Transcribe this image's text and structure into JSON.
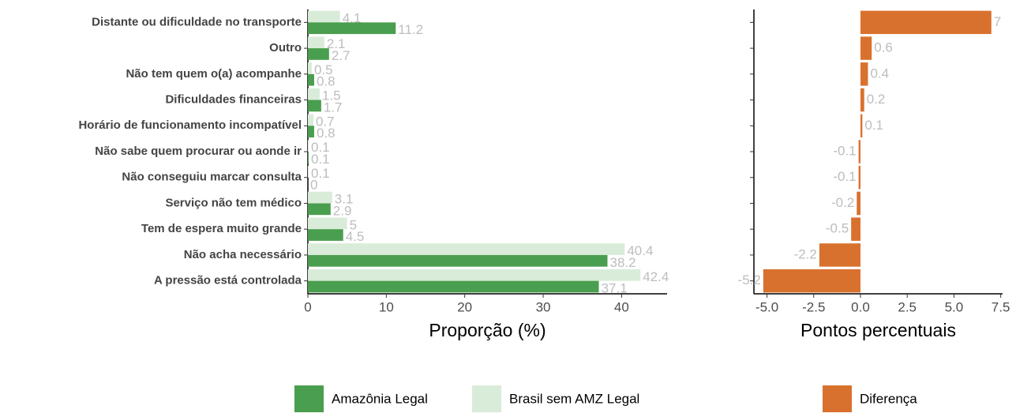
{
  "chart_data": [
    {
      "type": "hbar",
      "categories": [
        "Distante ou dificuldade no transporte",
        "Outro",
        "Não tem quem o(a) acompanhe",
        "Dificuldades financeiras",
        "Horário de funcionamento incompatível",
        "Não sabe quem procurar ou aonde ir",
        "Não conseguiu marcar consulta",
        "Serviço não tem médico",
        "Tem de espera muito grande",
        "Não acha necessário",
        "A pressão está controlada"
      ],
      "series": [
        {
          "name": "Brasil sem AMZ Legal",
          "color": "#d9ecd9",
          "values": [
            4.1,
            2.1,
            0.5,
            1.5,
            0.7,
            0.1,
            0.1,
            3.1,
            5,
            40.4,
            42.4
          ]
        },
        {
          "name": "Amazônia Legal",
          "color": "#4a9e4f",
          "values": [
            11.2,
            2.7,
            0.8,
            1.7,
            0.8,
            0.1,
            0,
            2.9,
            4.5,
            38.2,
            37.1
          ]
        }
      ],
      "x_label": "Proporção (%)",
      "xlim": [
        0,
        45.8
      ],
      "xticks": [
        0,
        10,
        20,
        30,
        40
      ]
    },
    {
      "type": "hbar",
      "series": [
        {
          "name": "Diferença",
          "color": "#d9712e",
          "values": [
            7,
            0.6,
            0.4,
            0.2,
            0.1,
            -0.1,
            -0.1,
            -0.2,
            -0.5,
            -2.2,
            -5.2
          ]
        }
      ],
      "x_label": "Pontos percentuais",
      "xlim": [
        -5.7,
        7.6
      ],
      "xticks": [
        {
          "value": -5,
          "label": "-5.0"
        },
        {
          "value": -2.5,
          "label": "-2.5"
        },
        {
          "value": 0,
          "label": "0.0"
        },
        {
          "value": 2.5,
          "label": "2.5"
        },
        {
          "value": 5,
          "label": "5.0"
        },
        {
          "value": 7.5,
          "label": "7.5"
        }
      ]
    }
  ]
}
